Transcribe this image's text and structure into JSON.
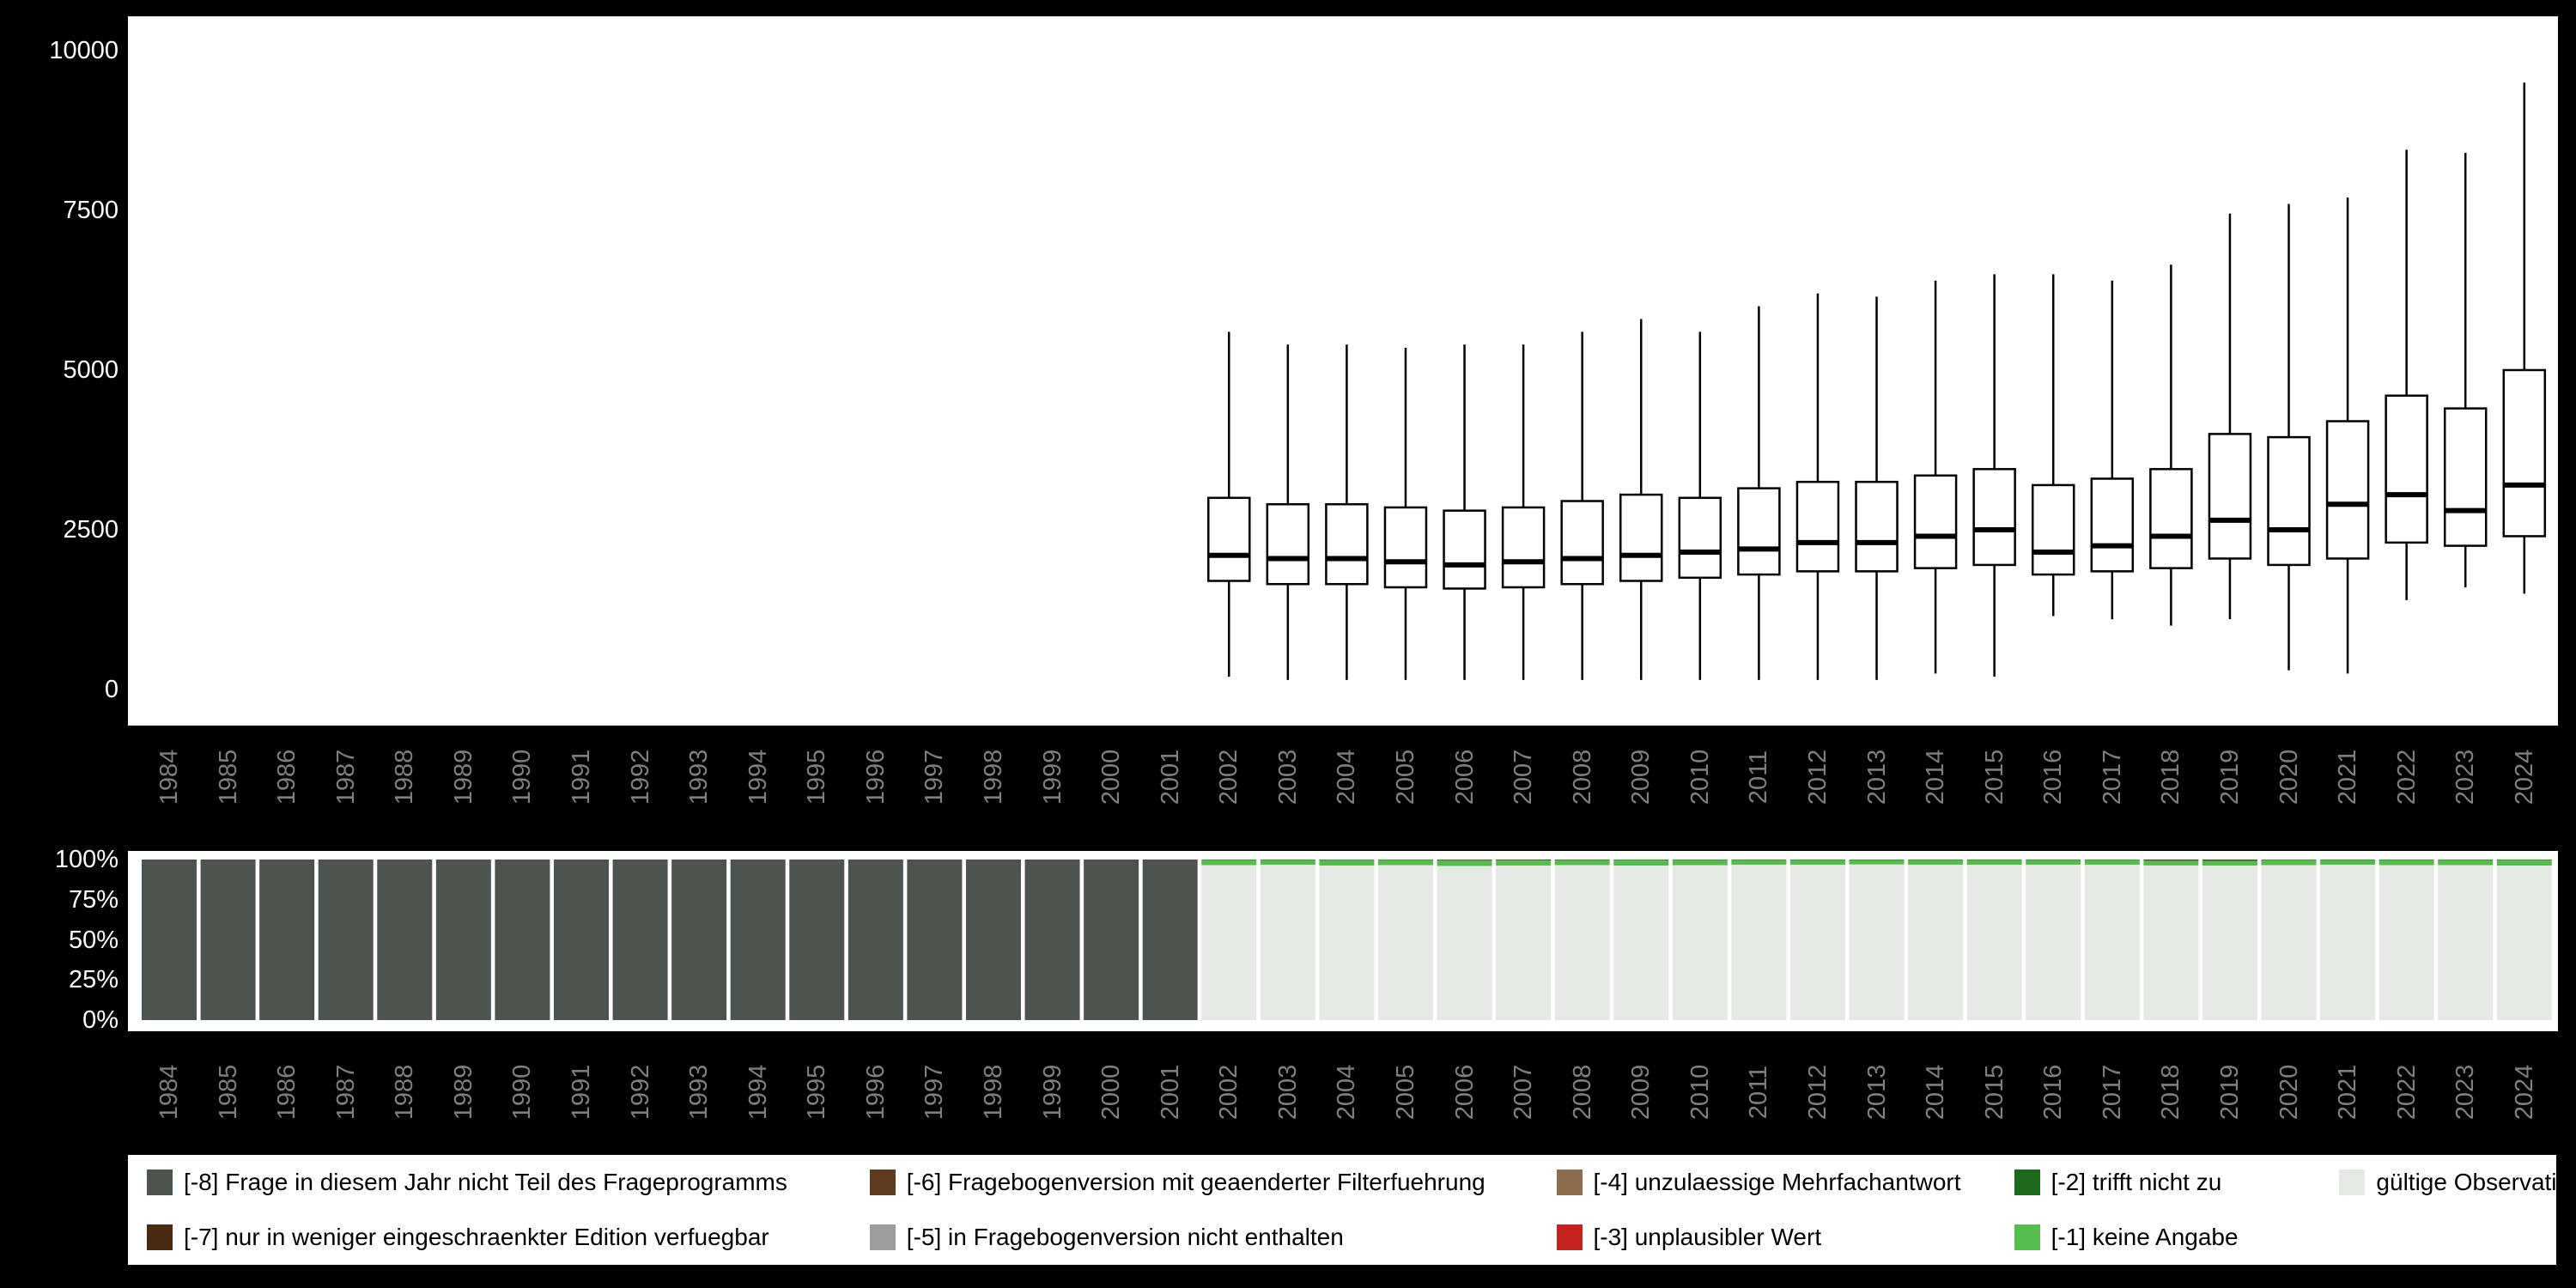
{
  "colors": {
    "background": "#000000",
    "panel": "#ffffff",
    "axis_tick_text": "#ffffff",
    "year_label": "#7f7f7f",
    "box_stroke": "#000000",
    "box_fill": "#ffffff"
  },
  "years": [
    "1984",
    "1985",
    "1986",
    "1987",
    "1988",
    "1989",
    "1990",
    "1991",
    "1992",
    "1993",
    "1994",
    "1995",
    "1996",
    "1997",
    "1998",
    "1999",
    "2000",
    "2001",
    "2002",
    "2003",
    "2004",
    "2005",
    "2006",
    "2007",
    "2008",
    "2009",
    "2010",
    "2011",
    "2012",
    "2013",
    "2014",
    "2015",
    "2016",
    "2017",
    "2018",
    "2019",
    "2020",
    "2021",
    "2022",
    "2023",
    "2024"
  ],
  "axis": {
    "y_top_labels": [
      {
        "text": "10000",
        "value": 10000
      },
      {
        "text": "7500",
        "value": 7500
      },
      {
        "text": "5000",
        "value": 5000
      },
      {
        "text": "2500",
        "value": 2500
      },
      {
        "text": "0",
        "value": 0
      }
    ],
    "y_bottom_labels": [
      {
        "text": "100%",
        "value": 100
      },
      {
        "text": "75%",
        "value": 75
      },
      {
        "text": "50%",
        "value": 50
      },
      {
        "text": "25%",
        "value": 25
      },
      {
        "text": "0%",
        "value": 0
      }
    ]
  },
  "legend": {
    "items": [
      {
        "label": "[-8] Frage in diesem Jahr nicht Teil des Frageprogramms",
        "color": "#4d544d"
      },
      {
        "label": "[-7] nur in weniger eingeschraenkter Edition verfuegbar",
        "color": "#4a2a12"
      },
      {
        "label": "[-6] Fragebogenversion mit geaenderter Filterfuehrung",
        "color": "#5e3a1e"
      },
      {
        "label": "[-5] in Fragebogenversion nicht enthalten",
        "color": "#9d9d9d"
      },
      {
        "label": "[-4] unzulaessige Mehrfachantwort",
        "color": "#8c6d4e"
      },
      {
        "label": "[-3] unplausibler Wert",
        "color": "#c5211e"
      },
      {
        "label": "[-2] trifft nicht zu",
        "color": "#1d6a1d"
      },
      {
        "label": "[-1] keine Angabe",
        "color": "#55bd4b"
      },
      {
        "label": "gültige Observationen",
        "color": "#e4e9e3"
      }
    ]
  },
  "chart_data": [
    {
      "type": "boxplot",
      "title": "",
      "xlabel": "",
      "ylabel": "",
      "x_range": [
        1984,
        2024
      ],
      "ylim": [
        0,
        10000
      ],
      "yticks": [
        0,
        2500,
        5000,
        7500,
        10000
      ],
      "grid": false,
      "boxes": [
        {
          "year": 2002,
          "low": 200,
          "q1": 1700,
          "median": 2100,
          "q3": 3000,
          "high": 5600
        },
        {
          "year": 2003,
          "low": 150,
          "q1": 1650,
          "median": 2050,
          "q3": 2900,
          "high": 5400
        },
        {
          "year": 2004,
          "low": 150,
          "q1": 1650,
          "median": 2050,
          "q3": 2900,
          "high": 5400
        },
        {
          "year": 2005,
          "low": 150,
          "q1": 1600,
          "median": 2000,
          "q3": 2850,
          "high": 5350
        },
        {
          "year": 2006,
          "low": 150,
          "q1": 1580,
          "median": 1950,
          "q3": 2800,
          "high": 5400
        },
        {
          "year": 2007,
          "low": 150,
          "q1": 1600,
          "median": 2000,
          "q3": 2850,
          "high": 5400
        },
        {
          "year": 2008,
          "low": 150,
          "q1": 1650,
          "median": 2050,
          "q3": 2950,
          "high": 5600
        },
        {
          "year": 2009,
          "low": 150,
          "q1": 1700,
          "median": 2100,
          "q3": 3050,
          "high": 5800
        },
        {
          "year": 2010,
          "low": 150,
          "q1": 1750,
          "median": 2150,
          "q3": 3000,
          "high": 5600
        },
        {
          "year": 2011,
          "low": 150,
          "q1": 1800,
          "median": 2200,
          "q3": 3150,
          "high": 6000
        },
        {
          "year": 2012,
          "low": 150,
          "q1": 1850,
          "median": 2300,
          "q3": 3250,
          "high": 6200
        },
        {
          "year": 2013,
          "low": 150,
          "q1": 1850,
          "median": 2300,
          "q3": 3250,
          "high": 6150
        },
        {
          "year": 2014,
          "low": 250,
          "q1": 1900,
          "median": 2400,
          "q3": 3350,
          "high": 6400
        },
        {
          "year": 2015,
          "low": 200,
          "q1": 1950,
          "median": 2500,
          "q3": 3450,
          "high": 6500
        },
        {
          "year": 2016,
          "low": 1150,
          "q1": 1800,
          "median": 2150,
          "q3": 3200,
          "high": 6500
        },
        {
          "year": 2017,
          "low": 1100,
          "q1": 1850,
          "median": 2250,
          "q3": 3300,
          "high": 6400
        },
        {
          "year": 2018,
          "low": 1000,
          "q1": 1900,
          "median": 2400,
          "q3": 3450,
          "high": 6650
        },
        {
          "year": 2019,
          "low": 1100,
          "q1": 2050,
          "median": 2650,
          "q3": 4000,
          "high": 7450
        },
        {
          "year": 2020,
          "low": 300,
          "q1": 1950,
          "median": 2500,
          "q3": 3950,
          "high": 7600
        },
        {
          "year": 2021,
          "low": 250,
          "q1": 2050,
          "median": 2900,
          "q3": 4200,
          "high": 7700
        },
        {
          "year": 2022,
          "low": 1400,
          "q1": 2300,
          "median": 3050,
          "q3": 4600,
          "high": 8450
        },
        {
          "year": 2023,
          "low": 1600,
          "q1": 2250,
          "median": 2800,
          "q3": 4400,
          "high": 8400
        },
        {
          "year": 2024,
          "low": 1500,
          "q1": 2400,
          "median": 3200,
          "q3": 5000,
          "high": 9500
        }
      ]
    },
    {
      "type": "stacked-bar-percent",
      "title": "",
      "ylim": [
        0,
        100
      ],
      "yticks_percent": [
        0,
        25,
        50,
        75,
        100
      ],
      "categories_top_to_bottom": [
        "-8",
        "-6",
        "-2",
        "-1",
        "valid"
      ],
      "category_colors": {
        "-8": "#4d544d",
        "-6": "#5e3a1e",
        "-2": "#1d6a1d",
        "-1": "#55bd4b",
        "valid": "#e4e9e3"
      },
      "bars": [
        {
          "year": 1984,
          "values": [
            100,
            0,
            0,
            0,
            0
          ]
        },
        {
          "year": 1985,
          "values": [
            100,
            0,
            0,
            0,
            0
          ]
        },
        {
          "year": 1986,
          "values": [
            100,
            0,
            0,
            0,
            0
          ]
        },
        {
          "year": 1987,
          "values": [
            100,
            0,
            0,
            0,
            0
          ]
        },
        {
          "year": 1988,
          "values": [
            100,
            0,
            0,
            0,
            0
          ]
        },
        {
          "year": 1989,
          "values": [
            100,
            0,
            0,
            0,
            0
          ]
        },
        {
          "year": 1990,
          "values": [
            100,
            0,
            0,
            0,
            0
          ]
        },
        {
          "year": 1991,
          "values": [
            100,
            0,
            0,
            0,
            0
          ]
        },
        {
          "year": 1992,
          "values": [
            100,
            0,
            0,
            0,
            0
          ]
        },
        {
          "year": 1993,
          "values": [
            100,
            0,
            0,
            0,
            0
          ]
        },
        {
          "year": 1994,
          "values": [
            100,
            0,
            0,
            0,
            0
          ]
        },
        {
          "year": 1995,
          "values": [
            100,
            0,
            0,
            0,
            0
          ]
        },
        {
          "year": 1996,
          "values": [
            100,
            0,
            0,
            0,
            0
          ]
        },
        {
          "year": 1997,
          "values": [
            100,
            0,
            0,
            0,
            0
          ]
        },
        {
          "year": 1998,
          "values": [
            100,
            0,
            0,
            0,
            0
          ]
        },
        {
          "year": 1999,
          "values": [
            100,
            0,
            0,
            0,
            0
          ]
        },
        {
          "year": 2000,
          "values": [
            100,
            0,
            0,
            0,
            0
          ]
        },
        {
          "year": 2001,
          "values": [
            100,
            0,
            0,
            0,
            0
          ]
        },
        {
          "year": 2002,
          "values": [
            0,
            0,
            0.3,
            3.2,
            96.5
          ]
        },
        {
          "year": 2003,
          "values": [
            0,
            0,
            0.3,
            3.0,
            96.7
          ]
        },
        {
          "year": 2004,
          "values": [
            0,
            0,
            0.4,
            3.4,
            96.2
          ]
        },
        {
          "year": 2005,
          "values": [
            0,
            0,
            0.3,
            3.2,
            96.5
          ]
        },
        {
          "year": 2006,
          "values": [
            0,
            0.4,
            0.3,
            3.4,
            95.9
          ]
        },
        {
          "year": 2007,
          "values": [
            0,
            0.3,
            0.3,
            3.2,
            96.2
          ]
        },
        {
          "year": 2008,
          "values": [
            0,
            0.2,
            0.3,
            3.0,
            96.5
          ]
        },
        {
          "year": 2009,
          "values": [
            0,
            0,
            0.3,
            3.5,
            96.2
          ]
        },
        {
          "year": 2010,
          "values": [
            0,
            0,
            0.3,
            3.3,
            96.4
          ]
        },
        {
          "year": 2011,
          "values": [
            0,
            0,
            0.3,
            3.0,
            96.7
          ]
        },
        {
          "year": 2012,
          "values": [
            0,
            0,
            0.3,
            3.0,
            96.7
          ]
        },
        {
          "year": 2013,
          "values": [
            0,
            0,
            0.3,
            2.8,
            96.9
          ]
        },
        {
          "year": 2014,
          "values": [
            0,
            0,
            0.3,
            3.0,
            96.7
          ]
        },
        {
          "year": 2015,
          "values": [
            0,
            0,
            0.3,
            3.0,
            96.7
          ]
        },
        {
          "year": 2016,
          "values": [
            0,
            0,
            0.3,
            3.0,
            96.7
          ]
        },
        {
          "year": 2017,
          "values": [
            0,
            0,
            0.3,
            3.0,
            96.7
          ]
        },
        {
          "year": 2018,
          "values": [
            0,
            0.6,
            0.3,
            2.8,
            96.3
          ]
        },
        {
          "year": 2019,
          "values": [
            0,
            0.5,
            0.3,
            3.0,
            96.2
          ]
        },
        {
          "year": 2020,
          "values": [
            0,
            0,
            0.3,
            3.2,
            96.5
          ]
        },
        {
          "year": 2021,
          "values": [
            0,
            0,
            0.3,
            3.0,
            96.7
          ]
        },
        {
          "year": 2022,
          "values": [
            0,
            0,
            0.3,
            3.2,
            96.5
          ]
        },
        {
          "year": 2023,
          "values": [
            0,
            0,
            0.3,
            3.2,
            96.5
          ]
        },
        {
          "year": 2024,
          "values": [
            0,
            0,
            0.3,
            3.5,
            96.2
          ]
        }
      ]
    }
  ]
}
